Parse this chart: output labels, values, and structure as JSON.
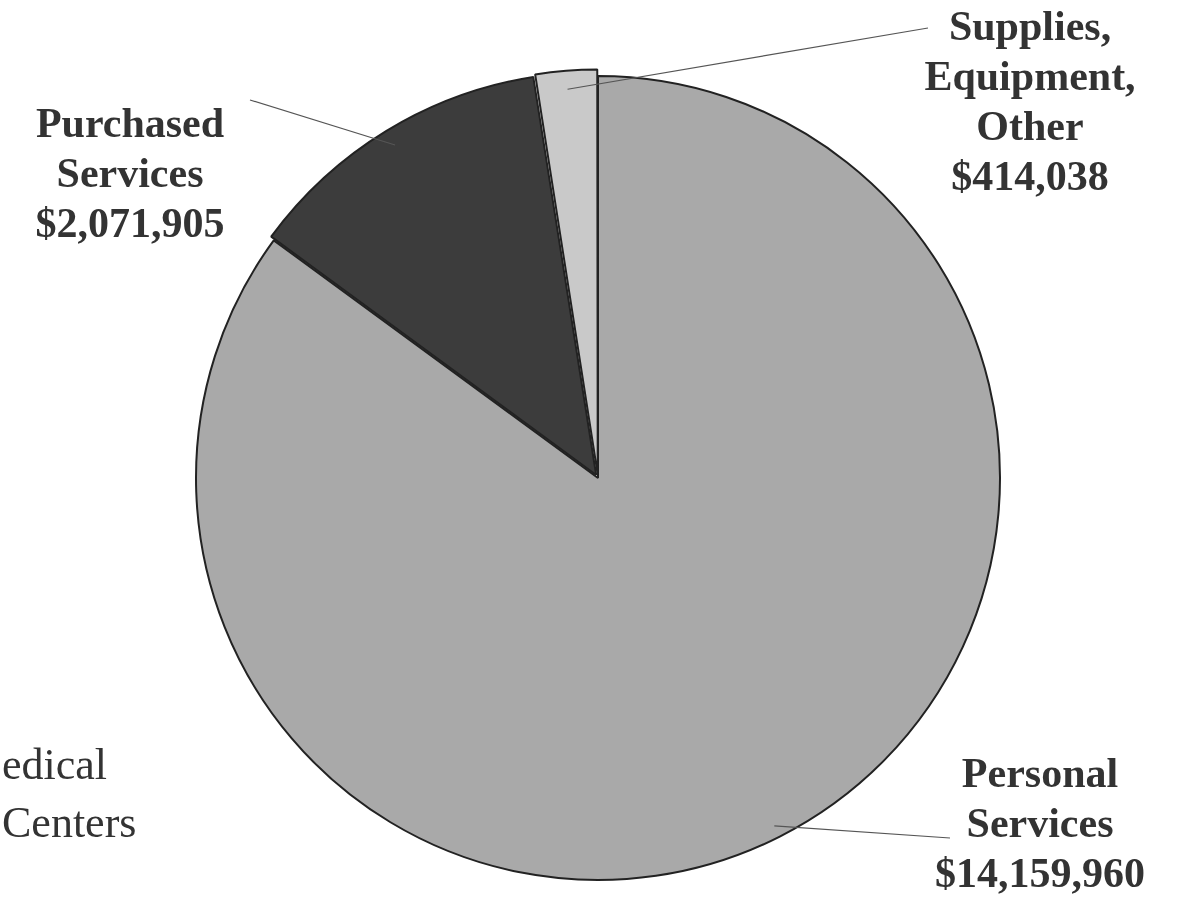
{
  "chart_data": {
    "type": "pie",
    "categories": [
      "Personal Services",
      "Purchased Services",
      "Supplies, Equipment, Other"
    ],
    "values": [
      14159960,
      2071905,
      414038
    ],
    "value_labels": [
      "$14,159,960",
      "$2,071,905",
      "$414,038"
    ],
    "colors": [
      "#a9a9a9",
      "#3c3c3c",
      "#c9c9c9"
    ],
    "annotations": [
      "edical Centers"
    ],
    "legend": false
  }
}
